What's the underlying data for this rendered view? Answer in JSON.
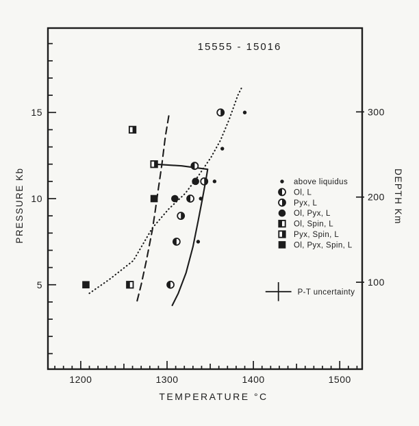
{
  "figure": {
    "ink_color": "#1c1c1c",
    "paper_color": "#f7f7f4"
  },
  "chart_data": {
    "type": "scatter",
    "title": "15555 - 15016",
    "xlabel": "TEMPERATURE °C",
    "ylabel_left": "PRESSURE  Kb",
    "ylabel_right": "DEPTH  Km",
    "xlim": [
      1162,
      1526
    ],
    "ylim": [
      0.1,
      19.9
    ],
    "x_ticks_major": [
      1200,
      1300,
      1400,
      1500
    ],
    "x_tick_minor_step": 10,
    "x_tick_minor_range": [
      1170,
      1520
    ],
    "y_ticks_major": [
      5,
      10,
      15
    ],
    "y_tick_minor_step": 1,
    "y_tick_minor_range": [
      1,
      19
    ],
    "right_axis": {
      "ticks_km": [
        300,
        200,
        100
      ],
      "km_to_kb_slope": 0.04945,
      "km_to_kb_intercept": 0.2
    },
    "grid": false,
    "legend_position": "right-middle",
    "series": [
      {
        "name": "above liquidus",
        "symbol": "dot",
        "points": [
          [
            1390,
            15
          ],
          [
            1364,
            12.9
          ],
          [
            1355,
            11
          ],
          [
            1339,
            10
          ],
          [
            1336,
            7.5
          ]
        ]
      },
      {
        "name": "Ol, L",
        "symbol": "circle-left",
        "points": [
          [
            1332,
            11.9
          ],
          [
            1327,
            10
          ],
          [
            1311,
            7.5
          ],
          [
            1304,
            5
          ]
        ]
      },
      {
        "name": "Pyx, L",
        "symbol": "circle-right",
        "points": [
          [
            1362,
            15
          ],
          [
            1343,
            11
          ],
          [
            1316,
            9
          ]
        ]
      },
      {
        "name": "Ol, Pyx, L",
        "symbol": "circle-full",
        "points": [
          [
            1333,
            11
          ],
          [
            1309,
            10
          ]
        ]
      },
      {
        "name": "Ol, Spin, L",
        "symbol": "square-left",
        "points": [
          [
            1257,
            5
          ]
        ]
      },
      {
        "name": "Pyx, Spin, L",
        "symbol": "square-right",
        "points": [
          [
            1260,
            14
          ],
          [
            1285,
            12
          ]
        ]
      },
      {
        "name": "Ol, Pyx, Spin, L",
        "symbol": "square-full",
        "points": [
          [
            1206,
            5
          ],
          [
            1285,
            10
          ]
        ]
      }
    ],
    "curves": [
      {
        "name": "dotted-boundary",
        "style": "dotted",
        "points": [
          [
            1210,
            4.5
          ],
          [
            1233,
            5.3
          ],
          [
            1261,
            6.4
          ],
          [
            1283,
            8.3
          ],
          [
            1302,
            9.4
          ],
          [
            1321,
            10.3
          ],
          [
            1336,
            11.3
          ],
          [
            1351,
            12.4
          ],
          [
            1362,
            13.4
          ],
          [
            1372,
            14.6
          ],
          [
            1382,
            16.0
          ],
          [
            1386,
            16.4
          ]
        ]
      },
      {
        "name": "dashed-boundary",
        "style": "dashed",
        "points": [
          [
            1302,
            14.8
          ],
          [
            1298,
            13.6
          ],
          [
            1294,
            12.0
          ],
          [
            1290,
            10.6
          ],
          [
            1286,
            9.2
          ],
          [
            1283,
            8.2
          ],
          [
            1276,
            6.4
          ],
          [
            1270,
            5.0
          ],
          [
            1265,
            4.0
          ]
        ]
      },
      {
        "name": "solid-boundary",
        "style": "solid",
        "points": [
          [
            1285,
            12.0
          ],
          [
            1317,
            11.9
          ],
          [
            1347,
            11.7
          ],
          [
            1345,
            11.1
          ],
          [
            1341,
            10.0
          ],
          [
            1336,
            8.7
          ],
          [
            1330,
            7.2
          ],
          [
            1322,
            5.7
          ],
          [
            1313,
            4.5
          ],
          [
            1306,
            3.8
          ]
        ]
      }
    ],
    "uncertainty": {
      "label": "P-T uncertainty",
      "t": 1429,
      "p": 4.6,
      "half_width_c": 15,
      "half_height_kb": 0.55
    }
  }
}
